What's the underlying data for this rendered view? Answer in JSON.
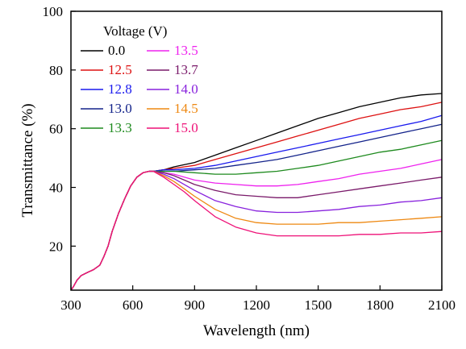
{
  "chart_data": {
    "type": "line",
    "title": "",
    "xlabel": "Wavelength (nm)",
    "ylabel": "Transmittance (%)",
    "xlim": [
      300,
      2100
    ],
    "ylim": [
      5,
      100
    ],
    "xticks": [
      300,
      600,
      900,
      1200,
      1500,
      1800,
      2100
    ],
    "yticks": [
      20,
      40,
      60,
      80,
      100
    ],
    "grid": false,
    "legend": {
      "title": "Voltage (V)",
      "placement": "top-left",
      "columns": 2
    },
    "shared_shape": {
      "description": "Common absorption edge below ~700 nm for all voltages",
      "x": [
        300,
        310,
        330,
        350,
        380,
        410,
        440,
        460,
        480,
        500,
        530,
        560,
        590,
        620,
        650,
        680,
        700
      ],
      "y": [
        5,
        6,
        8.5,
        10,
        11,
        12,
        13.5,
        16.5,
        20,
        25,
        31,
        36,
        40.5,
        43.5,
        45,
        45.5,
        45.5
      ]
    },
    "series": [
      {
        "name": "0.0",
        "color": "#000000",
        "x": [
          700,
          750,
          800,
          900,
          1000,
          1100,
          1200,
          1300,
          1400,
          1500,
          1600,
          1700,
          1800,
          1900,
          2000,
          2100
        ],
        "y": [
          45.5,
          46,
          47,
          48.5,
          51,
          53.5,
          56,
          58.5,
          61,
          63.5,
          65.5,
          67.5,
          69,
          70.5,
          71.5,
          72
        ]
      },
      {
        "name": "12.5",
        "color": "#dd1111",
        "x": [
          700,
          750,
          800,
          900,
          1000,
          1100,
          1200,
          1300,
          1400,
          1500,
          1600,
          1700,
          1800,
          1900,
          2000,
          2100
        ],
        "y": [
          45.5,
          46,
          46.5,
          47.5,
          49.5,
          51.5,
          53.5,
          55.5,
          57.5,
          59.5,
          61.5,
          63.5,
          65,
          66.5,
          67.5,
          69
        ]
      },
      {
        "name": "12.8",
        "color": "#1a1aee",
        "x": [
          700,
          750,
          800,
          900,
          1000,
          1100,
          1200,
          1300,
          1400,
          1500,
          1600,
          1700,
          1800,
          1900,
          2000,
          2100
        ],
        "y": [
          45.5,
          46,
          46,
          46.5,
          47.5,
          49,
          50.5,
          52,
          53.5,
          55,
          56.5,
          58,
          59.5,
          61,
          62.5,
          64.5
        ]
      },
      {
        "name": "13.0",
        "color": "#13238a",
        "x": [
          700,
          750,
          800,
          900,
          1000,
          1100,
          1200,
          1300,
          1400,
          1500,
          1600,
          1700,
          1800,
          1900,
          2000,
          2100
        ],
        "y": [
          45.5,
          45.5,
          45.5,
          46,
          46.5,
          47.5,
          48.5,
          49.5,
          51,
          52.5,
          54,
          55.5,
          57,
          58.5,
          60,
          61.5
        ]
      },
      {
        "name": "13.3",
        "color": "#1e8a1e",
        "x": [
          700,
          750,
          800,
          900,
          1000,
          1100,
          1200,
          1300,
          1400,
          1500,
          1600,
          1700,
          1800,
          1900,
          2000,
          2100
        ],
        "y": [
          45.5,
          45.5,
          45.5,
          45,
          44.5,
          44.5,
          45,
          45.5,
          46.5,
          47.5,
          49,
          50.5,
          52,
          53,
          54.5,
          56
        ]
      },
      {
        "name": "13.5",
        "color": "#ee22ee",
        "x": [
          700,
          750,
          800,
          850,
          900,
          1000,
          1100,
          1200,
          1300,
          1400,
          1500,
          1600,
          1700,
          1800,
          1900,
          2000,
          2100
        ],
        "y": [
          45.5,
          45,
          44.5,
          43.5,
          42.5,
          41.5,
          41,
          40.5,
          40.5,
          41,
          42,
          43,
          44.5,
          45.5,
          46.5,
          48,
          49.5
        ]
      },
      {
        "name": "13.7",
        "color": "#7a1a6a",
        "x": [
          700,
          750,
          800,
          850,
          900,
          1000,
          1100,
          1200,
          1300,
          1400,
          1500,
          1600,
          1700,
          1800,
          1900,
          2000,
          2100
        ],
        "y": [
          45.5,
          45,
          44,
          42.5,
          41,
          39,
          37.5,
          37,
          36.5,
          36.5,
          37.5,
          38.5,
          39.5,
          40.5,
          41.5,
          42.5,
          43.5
        ]
      },
      {
        "name": "14.0",
        "color": "#8822dd",
        "x": [
          700,
          750,
          800,
          850,
          900,
          1000,
          1100,
          1200,
          1300,
          1400,
          1500,
          1600,
          1700,
          1800,
          1900,
          2000,
          2100
        ],
        "y": [
          45.5,
          44.5,
          43,
          41,
          39,
          35.5,
          33.5,
          32,
          31.5,
          31.5,
          32,
          32.5,
          33.5,
          34,
          35,
          35.5,
          36.5
        ]
      },
      {
        "name": "14.5",
        "color": "#ee8811",
        "x": [
          700,
          750,
          800,
          850,
          900,
          1000,
          1100,
          1200,
          1300,
          1400,
          1500,
          1600,
          1700,
          1800,
          1900,
          2000,
          2100
        ],
        "y": [
          45.5,
          44,
          42,
          39.5,
          37,
          32.5,
          29.5,
          28,
          27.5,
          27.5,
          27.5,
          28,
          28,
          28.5,
          29,
          29.5,
          30
        ]
      },
      {
        "name": "15.0",
        "color": "#ee1177",
        "x": [
          700,
          750,
          800,
          850,
          900,
          1000,
          1100,
          1200,
          1300,
          1400,
          1500,
          1600,
          1700,
          1800,
          1900,
          2000,
          2100
        ],
        "y": [
          45.5,
          43.5,
          41,
          38.5,
          35.5,
          30,
          26.5,
          24.5,
          23.5,
          23.5,
          23.5,
          23.5,
          24,
          24,
          24.5,
          24.5,
          25
        ]
      }
    ]
  }
}
